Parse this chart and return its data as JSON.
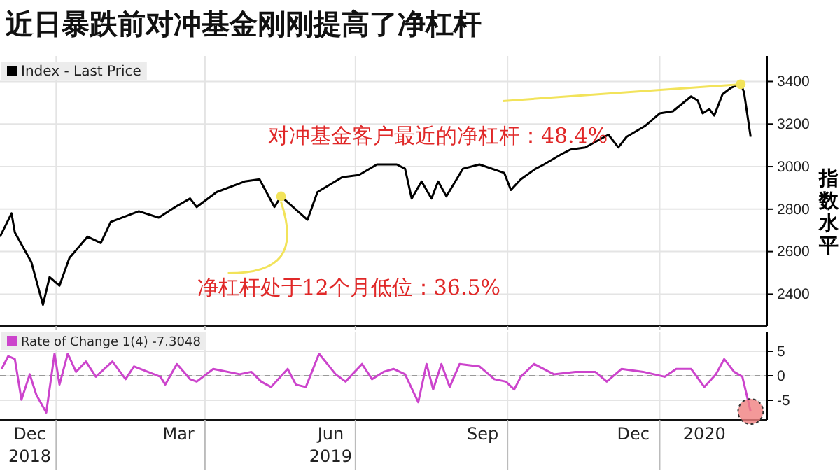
{
  "chart_data": [
    {
      "type": "line",
      "title": "近日暴跌前对冲基金刚刚提高了净杠杆",
      "ylabel": "指数水平",
      "legend": "top left",
      "grid": true,
      "tick_labels": "y",
      "marker": "none",
      "line_style": "solid",
      "xlim": [
        "2018-11-28",
        "2020-03-06"
      ],
      "xticks": [
        {
          "value": "2019-01-01",
          "label": null
        },
        {
          "value": "2019-04-01",
          "label": null
        },
        {
          "value": "2019-07-01",
          "label": null
        },
        {
          "value": "2019-10-01",
          "label": null
        },
        {
          "value": "2020-01-01",
          "label": null
        }
      ],
      "ylim": [
        2250,
        3520
      ],
      "yticks": [
        2400,
        2600,
        2800,
        3000,
        3200,
        3400
      ],
      "annotations": [
        {
          "text": "净杠杆处于12个月低位：36.5%",
          "x": "2019-05-17",
          "y": 2860
        },
        {
          "text": "对冲基金客户最近的净杠杆：48.4%",
          "x": "2020-02-19",
          "y": 3387
        }
      ],
      "series": [
        {
          "name": "Index - Last Price",
          "color": "#000000",
          "x": [
            "2018-11-28",
            "2018-12-05",
            "2018-12-07",
            "2018-12-17",
            "2018-12-24",
            "2018-12-28",
            "2019-01-03",
            "2019-01-09",
            "2019-01-20",
            "2019-01-28",
            "2019-02-03",
            "2019-02-20",
            "2019-03-04",
            "2019-03-14",
            "2019-03-23",
            "2019-03-27",
            "2019-04-08",
            "2019-04-25",
            "2019-05-04",
            "2019-05-13",
            "2019-05-17",
            "2019-06-02",
            "2019-06-08",
            "2019-06-23",
            "2019-07-03",
            "2019-07-14",
            "2019-07-26",
            "2019-07-31",
            "2019-08-04",
            "2019-08-10",
            "2019-08-16",
            "2019-08-20",
            "2019-08-25",
            "2019-09-04",
            "2019-09-14",
            "2019-09-29",
            "2019-10-03",
            "2019-10-09",
            "2019-10-18",
            "2019-10-23",
            "2019-11-03",
            "2019-11-08",
            "2019-11-17",
            "2019-12-01",
            "2019-12-07",
            "2019-12-12",
            "2019-12-23",
            "2020-01-01",
            "2020-01-09",
            "2020-01-20",
            "2020-01-24",
            "2020-01-27",
            "2020-01-31",
            "2020-02-03",
            "2020-02-08",
            "2020-02-13",
            "2020-02-19",
            "2020-02-21",
            "2020-02-25"
          ],
          "values": [
            2670,
            2780,
            2690,
            2550,
            2350,
            2480,
            2440,
            2570,
            2670,
            2640,
            2740,
            2790,
            2760,
            2810,
            2850,
            2810,
            2880,
            2930,
            2940,
            2810,
            2860,
            2750,
            2880,
            2950,
            2960,
            3010,
            3010,
            2990,
            2850,
            2930,
            2850,
            2930,
            2860,
            2990,
            3010,
            2970,
            2890,
            2940,
            2990,
            3010,
            3060,
            3080,
            3090,
            3150,
            3090,
            3140,
            3190,
            3250,
            3260,
            3330,
            3310,
            3250,
            3270,
            3240,
            3340,
            3370,
            3390,
            3350,
            3140
          ]
        }
      ]
    },
    {
      "type": "line",
      "legend": "top left",
      "grid": true,
      "marker": "none",
      "line_style": "solid",
      "xlim": [
        "2018-11-28",
        "2020-03-06"
      ],
      "xticks": [
        {
          "value": "2018-12-16",
          "label": "Dec\n2018"
        },
        {
          "value": "2019-01-01",
          "label": null
        },
        {
          "value": "2019-03-16",
          "label": "Mar"
        },
        {
          "value": "2019-04-01",
          "label": null
        },
        {
          "value": "2019-06-16",
          "label": "Jun\n2019"
        },
        {
          "value": "2019-07-01",
          "label": null
        },
        {
          "value": "2019-09-16",
          "label": "Sep"
        },
        {
          "value": "2019-10-01",
          "label": null
        },
        {
          "value": "2019-12-16",
          "label": "Dec"
        },
        {
          "value": "2020-01-01",
          "label": null
        },
        {
          "value": "2020-01-28",
          "label": "2020"
        }
      ],
      "ylim": [
        -9,
        9
      ],
      "yticks": [
        -5,
        0,
        5
      ],
      "ref_lines": [
        {
          "axis": "y",
          "value": 0,
          "color": "#999999",
          "line_style": "dashed"
        }
      ],
      "series": [
        {
          "name": "Rate of Change 1(4) -7.3048",
          "color": "#cc44cc",
          "x": [
            "2018-11-29",
            "2018-12-03",
            "2018-12-07",
            "2018-12-11",
            "2018-12-16",
            "2018-12-20",
            "2018-12-26",
            "2018-12-31",
            "2019-01-03",
            "2019-01-08",
            "2019-01-13",
            "2019-01-19",
            "2019-01-25",
            "2019-02-04",
            "2019-02-12",
            "2019-02-17",
            "2019-03-05",
            "2019-03-08",
            "2019-03-15",
            "2019-03-23",
            "2019-03-27",
            "2019-04-06",
            "2019-04-22",
            "2019-04-29",
            "2019-05-05",
            "2019-05-11",
            "2019-05-21",
            "2019-05-26",
            "2019-06-01",
            "2019-06-09",
            "2019-06-19",
            "2019-06-25",
            "2019-07-05",
            "2019-07-11",
            "2019-07-18",
            "2019-07-24",
            "2019-07-31",
            "2019-08-08",
            "2019-08-13",
            "2019-08-17",
            "2019-08-22",
            "2019-08-27",
            "2019-09-02",
            "2019-09-14",
            "2019-09-23",
            "2019-09-30",
            "2019-10-05",
            "2019-10-09",
            "2019-10-17",
            "2019-10-29",
            "2019-11-11",
            "2019-11-23",
            "2019-11-30",
            "2019-12-09",
            "2019-12-22",
            "2020-01-04",
            "2020-01-11",
            "2020-01-20",
            "2020-01-28",
            "2020-02-04",
            "2020-02-09",
            "2020-02-15",
            "2020-02-20",
            "2020-02-25"
          ],
          "values": [
            1.4,
            4.0,
            3.4,
            -4.9,
            0.3,
            -3.9,
            -7.5,
            4.5,
            -1.8,
            4.5,
            0.8,
            2.9,
            -0.2,
            2.9,
            -0.7,
            1.9,
            -0.2,
            -1.8,
            2.4,
            -0.7,
            -1.2,
            1.4,
            0.3,
            0.8,
            -1.2,
            -2.3,
            1.4,
            -1.8,
            -2.3,
            4.5,
            0.3,
            -1.2,
            2.4,
            -0.7,
            0.8,
            1.4,
            0.3,
            -5.4,
            2.4,
            -2.8,
            2.4,
            -2.3,
            2.4,
            1.9,
            -0.7,
            -1.2,
            -2.8,
            -0.2,
            2.4,
            0.3,
            0.8,
            0.8,
            -1.2,
            1.4,
            0.8,
            -0.2,
            1.4,
            1.4,
            -2.3,
            0.3,
            3.4,
            0.8,
            -0.2,
            -7.3
          ]
        }
      ]
    }
  ]
}
